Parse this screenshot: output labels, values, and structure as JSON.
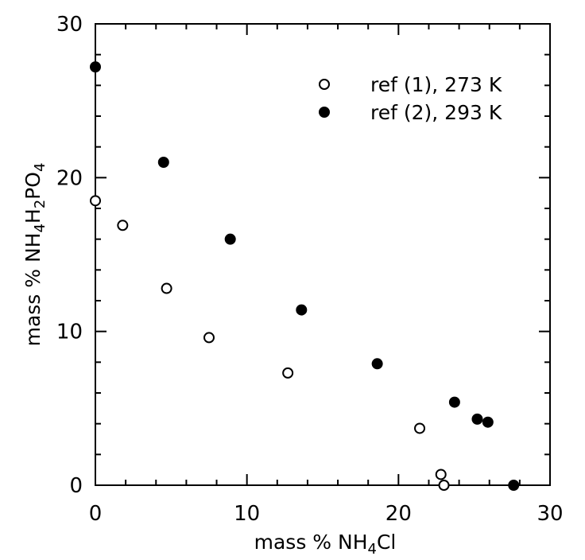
{
  "chart_data": {
    "type": "scatter",
    "xlabel": "mass % NH₄Cl",
    "ylabel": "mass % NH₄H₂PO₄",
    "xlim": [
      0,
      30
    ],
    "ylim": [
      0,
      30
    ],
    "xticks": [
      0,
      10,
      20,
      30
    ],
    "yticks": [
      0,
      10,
      20,
      30
    ],
    "grid": false,
    "legend_position": "top-right",
    "series": [
      {
        "name": "ref (1), 273 K",
        "marker": "open-circle",
        "points": [
          [
            0.0,
            18.5
          ],
          [
            1.8,
            16.9
          ],
          [
            4.7,
            12.8
          ],
          [
            7.5,
            9.6
          ],
          [
            12.7,
            7.3
          ],
          [
            21.4,
            3.7
          ],
          [
            22.8,
            0.7
          ],
          [
            23.0,
            0.0
          ]
        ]
      },
      {
        "name": "ref (2), 293 K",
        "marker": "filled-circle",
        "points": [
          [
            0.0,
            27.2
          ],
          [
            4.5,
            21.0
          ],
          [
            8.9,
            16.0
          ],
          [
            13.6,
            11.4
          ],
          [
            18.6,
            7.9
          ],
          [
            23.7,
            5.4
          ],
          [
            25.2,
            4.3
          ],
          [
            25.9,
            4.1
          ],
          [
            27.6,
            0.0
          ]
        ]
      }
    ],
    "colors": {
      "axis": "#000000",
      "marker": "#000000",
      "background": "#ffffff"
    }
  }
}
